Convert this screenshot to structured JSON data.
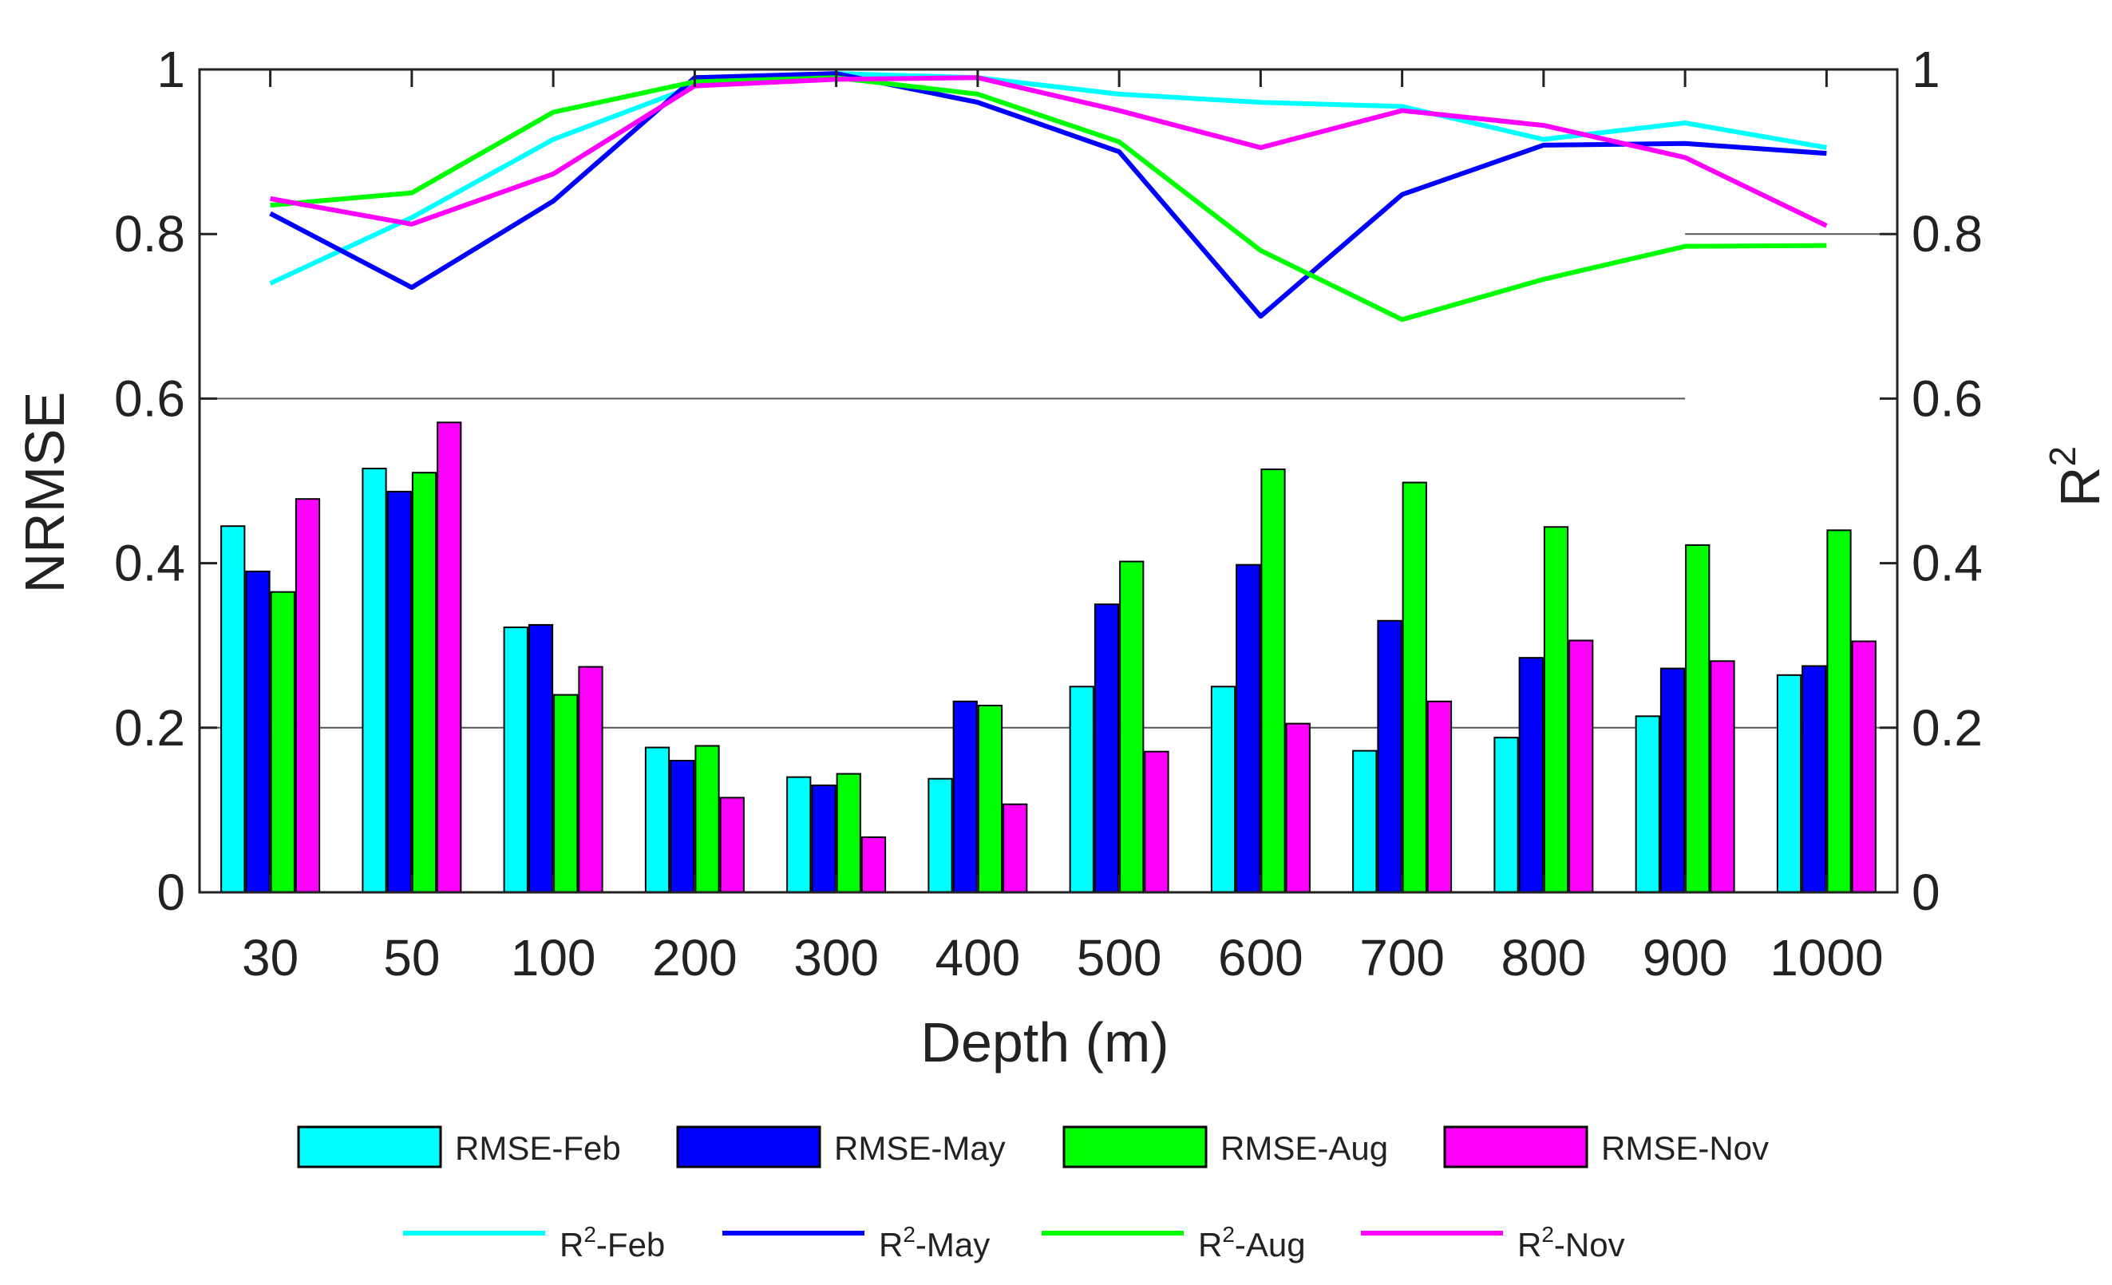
{
  "chart_data": {
    "type": "bar+line",
    "title": "",
    "xlabel": "Depth (m)",
    "ylabel": "NRMSE",
    "y2label": "R",
    "y2label_sup": "2",
    "categories": [
      "30",
      "50",
      "100",
      "200",
      "300",
      "400",
      "500",
      "600",
      "700",
      "800",
      "900",
      "1000"
    ],
    "ylim": [
      0,
      1
    ],
    "y2lim": [
      0,
      1
    ],
    "yticks": [
      "0",
      "0.2",
      "0.4",
      "0.6",
      "0.8",
      "1"
    ],
    "y2ticks": [
      "0",
      "0.2",
      "0.4",
      "0.6",
      "0.8",
      "1"
    ],
    "bar_series": [
      {
        "name": "RMSE-Feb",
        "color": "#00ffff",
        "values": [
          0.445,
          0.515,
          0.322,
          0.176,
          0.14,
          0.138,
          0.25,
          0.25,
          0.172,
          0.188,
          0.214,
          0.264
        ]
      },
      {
        "name": "RMSE-May",
        "color": "#0000ff",
        "values": [
          0.39,
          0.487,
          0.325,
          0.16,
          0.13,
          0.232,
          0.35,
          0.398,
          0.33,
          0.285,
          0.272,
          0.275
        ]
      },
      {
        "name": "RMSE-Aug",
        "color": "#00ff00",
        "values": [
          0.365,
          0.51,
          0.24,
          0.178,
          0.144,
          0.227,
          0.402,
          0.514,
          0.498,
          0.444,
          0.422,
          0.44
        ]
      },
      {
        "name": "RMSE-Nov",
        "color": "#ff00ff",
        "values": [
          0.478,
          0.571,
          0.274,
          0.115,
          0.067,
          0.107,
          0.171,
          0.205,
          0.232,
          0.306,
          0.281,
          0.305
        ]
      }
    ],
    "line_series": [
      {
        "name": "R2-Feb",
        "label": "R",
        "sup": "2",
        "suffix": "-Feb",
        "color": "#00ffff",
        "values": [
          0.74,
          0.82,
          0.915,
          0.98,
          0.995,
          0.99,
          0.97,
          0.96,
          0.955,
          0.915,
          0.935,
          0.905
        ]
      },
      {
        "name": "R2-May",
        "label": "R",
        "sup": "2",
        "suffix": "-May",
        "color": "#0000ff",
        "values": [
          0.825,
          0.735,
          0.84,
          0.99,
          0.995,
          0.96,
          0.9,
          0.7,
          0.848,
          0.908,
          0.91,
          0.898
        ]
      },
      {
        "name": "R2-Aug",
        "label": "R",
        "sup": "2",
        "suffix": "-Aug",
        "color": "#00ff00",
        "values": [
          0.835,
          0.85,
          0.948,
          0.985,
          0.99,
          0.97,
          0.912,
          0.78,
          0.696,
          0.745,
          0.785,
          0.786
        ]
      },
      {
        "name": "R2-Nov",
        "label": "R",
        "sup": "2",
        "suffix": "-Nov",
        "color": "#ff00ff",
        "values": [
          0.843,
          0.812,
          0.873,
          0.98,
          0.988,
          0.99,
          0.95,
          0.905,
          0.95,
          0.932,
          0.893,
          0.81
        ]
      }
    ],
    "reference_lines": [
      {
        "y": 0.6,
        "from_category": "30",
        "to_category": "900"
      },
      {
        "y": 0.2,
        "from_category": "30",
        "to_category": "1000"
      },
      {
        "y": 0.8,
        "from_category": "900",
        "to_category": "1000"
      }
    ]
  }
}
